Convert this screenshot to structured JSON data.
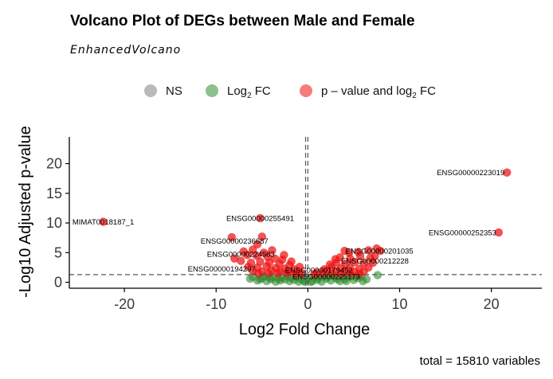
{
  "chart_data": {
    "type": "scatter",
    "title": "Volcano Plot of DEGs between Male and Female",
    "subtitle": "EnhancedVolcano",
    "xlabel": "Log2 Fold Change",
    "ylabel": "-Log10 Adjusted p-value",
    "caption": "total = 15810 variables",
    "xlim": [
      -26,
      25.5
    ],
    "ylim": [
      -1,
      24.5
    ],
    "xticks": [
      -20,
      -10,
      0,
      10,
      20
    ],
    "yticks": [
      0,
      5,
      10,
      15,
      20
    ],
    "grid": false,
    "legend_position": "top",
    "legend": [
      {
        "key": "ns",
        "label": "NS",
        "sub": "",
        "suffix": "",
        "color": "#808080"
      },
      {
        "key": "fc",
        "label": "Log",
        "sub": "2",
        "suffix": " FC",
        "color": "#2e8b2e"
      },
      {
        "key": "both",
        "label": "p – value and log",
        "sub": "2",
        "suffix": " FC",
        "color": "#ee1111"
      }
    ],
    "cutoffs": {
      "fc": [
        -0.25,
        0
      ],
      "p_line": 1.3
    },
    "series": [
      {
        "key": "both",
        "points": [
          [
            21.7,
            18.5
          ],
          [
            20.8,
            8.4
          ],
          [
            -22.3,
            10.2
          ],
          [
            -5.2,
            10.8
          ],
          [
            -8.3,
            7.6
          ],
          [
            -5.0,
            7.7
          ],
          [
            -5.5,
            6.4
          ],
          [
            -6.0,
            5.5
          ],
          [
            -7.0,
            5.2
          ],
          [
            -4.8,
            5.0
          ],
          [
            -8.0,
            4.0
          ],
          [
            -6.6,
            4.6
          ],
          [
            -5.6,
            4.5
          ],
          [
            -4.4,
            4.3
          ],
          [
            -3.6,
            4.0
          ],
          [
            -2.8,
            3.8
          ],
          [
            -7.3,
            3.6
          ],
          [
            -6.2,
            3.3
          ],
          [
            -5.2,
            3.5
          ],
          [
            -4.2,
            3.3
          ],
          [
            -3.1,
            3.1
          ],
          [
            -2.0,
            2.9
          ],
          [
            -6.5,
            2.6
          ],
          [
            -5.5,
            2.5
          ],
          [
            -4.5,
            2.7
          ],
          [
            -3.5,
            2.4
          ],
          [
            -2.5,
            2.3
          ],
          [
            -1.5,
            2.2
          ],
          [
            -6.0,
            1.9
          ],
          [
            -5.0,
            1.8
          ],
          [
            -4.0,
            2.0
          ],
          [
            -3.0,
            1.8
          ],
          [
            -2.0,
            1.7
          ],
          [
            -1.0,
            1.6
          ],
          [
            -5.4,
            1.5
          ],
          [
            -4.3,
            1.5
          ],
          [
            -3.3,
            1.5
          ],
          [
            -2.3,
            1.5
          ],
          [
            -1.3,
            1.4
          ],
          [
            -0.6,
            1.5
          ],
          [
            -3.9,
            5.4
          ],
          [
            -2.6,
            4.6
          ],
          [
            -1.8,
            3.5
          ],
          [
            -0.9,
            2.6
          ],
          [
            4.0,
            5.3
          ],
          [
            4.5,
            5.0
          ],
          [
            5.5,
            5.1
          ],
          [
            6.6,
            5.4
          ],
          [
            7.5,
            5.7
          ],
          [
            7.9,
            5.3
          ],
          [
            3.5,
            4.2
          ],
          [
            4.6,
            4.0
          ],
          [
            5.7,
            4.4
          ],
          [
            6.8,
            4.1
          ],
          [
            7.3,
            4.5
          ],
          [
            3.1,
            3.3
          ],
          [
            4.1,
            3.1
          ],
          [
            5.1,
            3.4
          ],
          [
            6.1,
            3.2
          ],
          [
            7.1,
            3.3
          ],
          [
            2.6,
            2.6
          ],
          [
            3.6,
            2.4
          ],
          [
            4.6,
            2.5
          ],
          [
            5.6,
            2.3
          ],
          [
            6.6,
            2.5
          ],
          [
            2.1,
            1.9
          ],
          [
            3.1,
            1.8
          ],
          [
            4.1,
            1.9
          ],
          [
            5.1,
            1.7
          ],
          [
            6.1,
            1.8
          ],
          [
            1.6,
            1.5
          ],
          [
            2.6,
            1.5
          ],
          [
            3.6,
            1.4
          ],
          [
            4.6,
            1.5
          ],
          [
            5.6,
            1.4
          ],
          [
            1.0,
            1.6
          ],
          [
            1.8,
            2.2
          ],
          [
            2.4,
            3.0
          ],
          [
            3.0,
            3.9
          ],
          [
            0.7,
            1.4
          ]
        ]
      },
      {
        "key": "fc",
        "points": [
          [
            -6.0,
            0.9
          ],
          [
            -5.0,
            0.7
          ],
          [
            -4.0,
            0.5
          ],
          [
            -3.0,
            0.3
          ],
          [
            -2.0,
            0.2
          ],
          [
            -1.0,
            0.1
          ],
          [
            -5.5,
            0.3
          ],
          [
            -4.5,
            0.2
          ],
          [
            -3.5,
            0.1
          ],
          [
            -2.5,
            0.5
          ],
          [
            -1.5,
            0.4
          ],
          [
            -0.5,
            0.3
          ],
          [
            -4.8,
            1.0
          ],
          [
            -3.8,
            0.9
          ],
          [
            -2.8,
            0.8
          ],
          [
            -1.8,
            0.7
          ],
          [
            -0.8,
            0.6
          ],
          [
            0.5,
            0.2
          ],
          [
            1.0,
            0.4
          ],
          [
            1.5,
            0.1
          ],
          [
            2.0,
            0.6
          ],
          [
            2.5,
            0.3
          ],
          [
            3.0,
            0.8
          ],
          [
            3.5,
            0.2
          ],
          [
            4.0,
            0.5
          ],
          [
            4.5,
            0.9
          ],
          [
            5.0,
            0.4
          ],
          [
            5.5,
            0.7
          ],
          [
            6.0,
            0.2
          ],
          [
            6.4,
            0.5
          ],
          [
            0.8,
            0.9
          ],
          [
            1.8,
            1.0
          ],
          [
            2.8,
            1.1
          ],
          [
            3.8,
            1.0
          ],
          [
            4.8,
            1.1
          ],
          [
            5.8,
            1.0
          ],
          [
            7.6,
            1.2
          ],
          [
            -0.3,
            0.05
          ],
          [
            0.3,
            0.05
          ],
          [
            0.0,
            0.7
          ],
          [
            1.2,
            0.7
          ],
          [
            2.2,
            0.9
          ],
          [
            3.2,
            0.5
          ],
          [
            4.2,
            0.2
          ],
          [
            5.2,
            0.9
          ],
          [
            -1.2,
            0.9
          ],
          [
            -2.2,
            1.0
          ],
          [
            -3.2,
            0.6
          ],
          [
            -4.2,
            0.8
          ],
          [
            -5.2,
            0.5
          ],
          [
            -6.3,
            0.6
          ]
        ]
      }
    ],
    "labels": [
      {
        "text": "ENSG00000223019",
        "x": 21.7,
        "y": 18.5,
        "anchor": "end"
      },
      {
        "text": "ENSG00000252353",
        "x": 20.8,
        "y": 8.4,
        "anchor": "end"
      },
      {
        "text": "MIMAT0018187_1",
        "x": -22.3,
        "y": 10.2,
        "anchor": "middle"
      },
      {
        "text": "ENSG00000255491",
        "x": -5.2,
        "y": 10.8,
        "anchor": "middle"
      },
      {
        "text": "ENSG00000236687",
        "x": -8.0,
        "y": 7.0,
        "anchor": "middle"
      },
      {
        "text": "ENSG00000224583",
        "x": -7.3,
        "y": 4.8,
        "anchor": "middle"
      },
      {
        "text": "ENSG00000194297",
        "x": -9.4,
        "y": 2.3,
        "anchor": "middle"
      },
      {
        "text": "ENSG00000201035",
        "x": 7.8,
        "y": 5.3,
        "anchor": "middle"
      },
      {
        "text": "ENSG00000212228",
        "x": 7.3,
        "y": 3.6,
        "anchor": "middle"
      },
      {
        "text": "ENSG00000179452",
        "x": 1.2,
        "y": 2.1,
        "anchor": "middle"
      },
      {
        "text": "ENSG00000225173",
        "x": 2.0,
        "y": 1.0,
        "anchor": "middle"
      }
    ]
  }
}
